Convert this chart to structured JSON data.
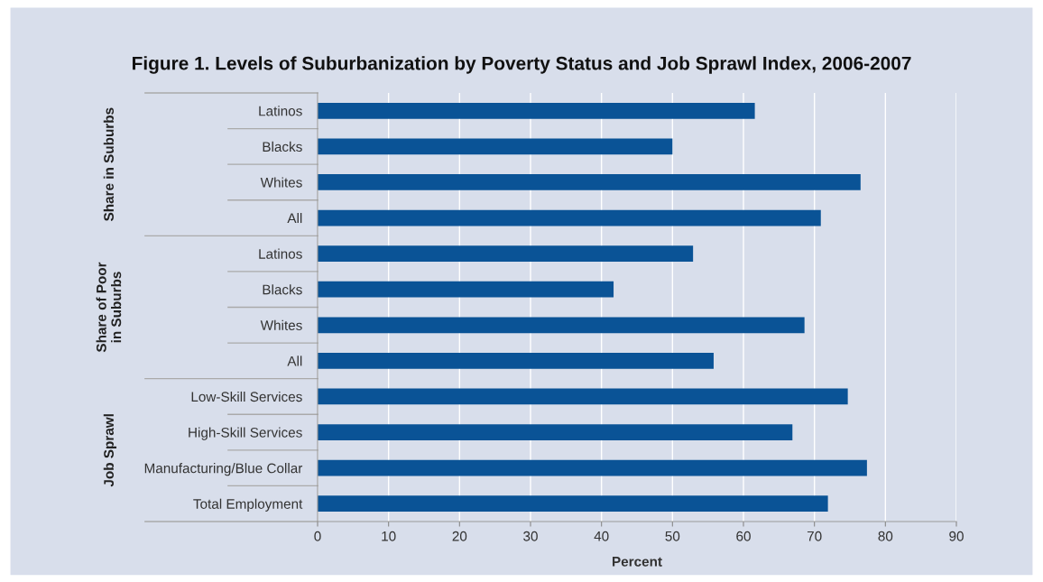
{
  "chart_data": {
    "type": "bar",
    "orientation": "horizontal",
    "title": "Figure 1. Levels of Suburbanization by Poverty Status and Job Sprawl Index, 2006-2007",
    "xlabel": "Percent",
    "categories": [
      "Latinos",
      "Blacks",
      "Whites",
      "All",
      "Latinos",
      "Blacks",
      "Whites",
      "All",
      "Low-Skill Services",
      "High-Skill Services",
      "Manufacturing/Blue Collar",
      "Total Employment"
    ],
    "values": [
      61.6,
      50.0,
      76.5,
      70.9,
      52.9,
      41.7,
      68.6,
      55.8,
      74.7,
      66.9,
      77.4,
      71.9
    ],
    "color": "#0a5396",
    "xlim": [
      0,
      90
    ],
    "xticks": [
      0,
      10,
      20,
      30,
      40,
      50,
      60,
      70,
      80,
      90
    ],
    "grid": "x",
    "annotations": [
      "Share in Suburbs",
      "Share of Poor\nin Suburbs",
      "Job Sprawl"
    ]
  }
}
